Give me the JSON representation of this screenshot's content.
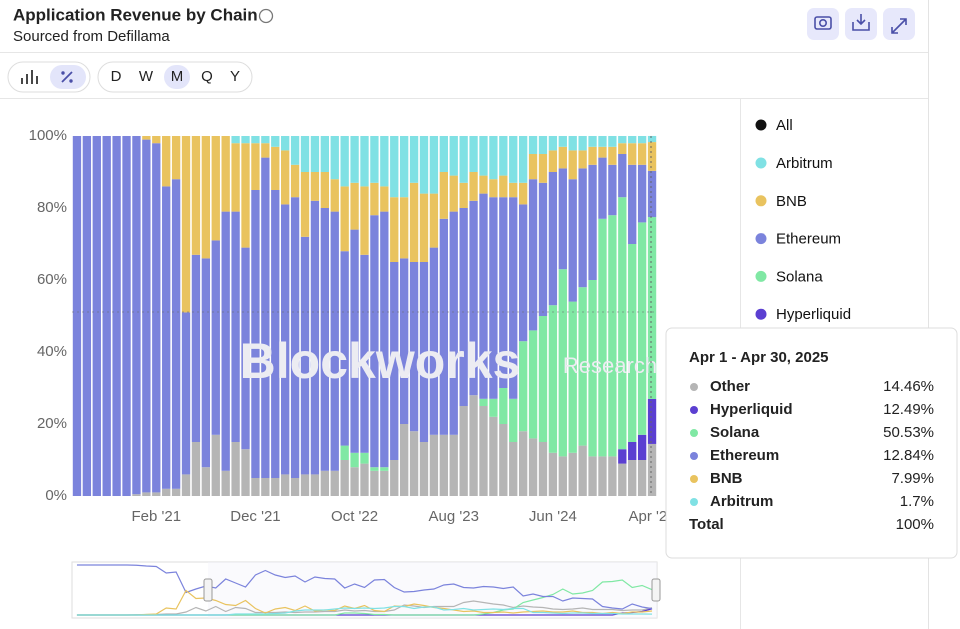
{
  "header": {
    "title": "Application Revenue by Chain",
    "subtitle": "Sourced from Defillama"
  },
  "toolbar": {
    "periods": [
      "D",
      "W",
      "M",
      "Q",
      "Y"
    ],
    "active_period": "M"
  },
  "watermark": {
    "brand": "Blockworks",
    "tag": "Research"
  },
  "legend": {
    "all": "All"
  },
  "chart_data": {
    "type": "stacked_bar",
    "categories": [
      null,
      null,
      null,
      null,
      null,
      null,
      null,
      null,
      "Feb '21",
      null,
      null,
      null,
      null,
      null,
      null,
      null,
      null,
      null,
      "Dec '21",
      null,
      null,
      null,
      null,
      null,
      null,
      null,
      null,
      null,
      "Oct '22",
      null,
      null,
      null,
      null,
      null,
      null,
      null,
      null,
      null,
      "Aug '23",
      null,
      null,
      null,
      null,
      null,
      null,
      null,
      null,
      null,
      "Jun '24",
      null,
      null,
      null,
      null,
      null,
      null,
      null,
      null,
      null,
      "Apr '25"
    ],
    "ylim": [
      0,
      100
    ],
    "yticks": [
      {
        "value": 0,
        "label": "0%"
      },
      {
        "value": 20,
        "label": "20%"
      },
      {
        "value": 40,
        "label": "40%"
      },
      {
        "value": 60,
        "label": "60%"
      },
      {
        "value": 80,
        "label": "80%"
      },
      {
        "value": 100,
        "label": "100%"
      }
    ],
    "grid": false,
    "series": [
      {
        "name": "Other",
        "color": "#b5b5b5",
        "values": [
          0,
          0,
          0,
          0,
          0,
          0,
          0.5,
          1,
          1,
          2,
          2,
          6,
          15,
          8,
          17,
          7,
          15,
          13,
          5,
          5,
          5,
          6,
          5,
          6,
          6,
          7,
          7,
          10,
          8,
          9,
          7,
          7,
          10,
          20,
          18,
          15,
          17,
          17,
          17,
          25,
          28,
          25,
          22,
          20,
          15,
          18,
          16,
          15,
          12,
          11,
          12,
          14,
          11,
          11,
          11,
          9,
          10,
          10,
          14.46
        ]
      },
      {
        "name": "Hyperliquid",
        "color": "#5b3fd1",
        "values": [
          0,
          0,
          0,
          0,
          0,
          0,
          0,
          0,
          0,
          0,
          0,
          0,
          0,
          0,
          0,
          0,
          0,
          0,
          0,
          0,
          0,
          0,
          0,
          0,
          0,
          0,
          0,
          0,
          0,
          0,
          0,
          0,
          0,
          0,
          0,
          0,
          0,
          0,
          0,
          0,
          0,
          0,
          0,
          0,
          0,
          0,
          0,
          0,
          0,
          0,
          0,
          0,
          0,
          0,
          0,
          4,
          5,
          7,
          12.49
        ]
      },
      {
        "name": "Solana",
        "color": "#80e8a4",
        "values": [
          0,
          0,
          0,
          0,
          0,
          0,
          0,
          0,
          0,
          0,
          0,
          0,
          0,
          0,
          0,
          0,
          0,
          0,
          0,
          0,
          0,
          0,
          0,
          0,
          0,
          0,
          0,
          4,
          4,
          3,
          1,
          1,
          0,
          0,
          0,
          0,
          0,
          0,
          0,
          0,
          0,
          2,
          5,
          10,
          12,
          25,
          30,
          35,
          41,
          52,
          42,
          44,
          49,
          66,
          67,
          70,
          55,
          59,
          50.53
        ]
      },
      {
        "name": "Ethereum",
        "color": "#7b83dc",
        "values": [
          100,
          100,
          100,
          100,
          100,
          100,
          99.5,
          98,
          97,
          84,
          86,
          45,
          52,
          58,
          54,
          72,
          64,
          56,
          80,
          89,
          80,
          75,
          78,
          66,
          76,
          73,
          72,
          54,
          62,
          55,
          70,
          71,
          55,
          46,
          47,
          50,
          52,
          60,
          62,
          55,
          54,
          57,
          56,
          53,
          56,
          38,
          42,
          37,
          37,
          28,
          34,
          33,
          32,
          17,
          14,
          12,
          22,
          16,
          12.84
        ]
      },
      {
        "name": "BNB",
        "color": "#e9c35f",
        "values": [
          0,
          0,
          0,
          0,
          0,
          0,
          0,
          1,
          2,
          14,
          12,
          49,
          33,
          34,
          29,
          21,
          19,
          29,
          13,
          4,
          12,
          15,
          9,
          18,
          8,
          10,
          9,
          18,
          13,
          19,
          9,
          7,
          18,
          17,
          22,
          19,
          15,
          13,
          10,
          7,
          8,
          5,
          5,
          6,
          4,
          6,
          7,
          8,
          6,
          6,
          8,
          5,
          5,
          3,
          5,
          3,
          6,
          6,
          7.99
        ]
      },
      {
        "name": "Arbitrum",
        "color": "#80e1e4",
        "values": [
          0,
          0,
          0,
          0,
          0,
          0,
          0,
          0,
          0,
          0,
          0,
          0,
          0,
          0,
          0,
          0,
          2,
          2,
          2,
          2,
          3,
          4,
          8,
          10,
          10,
          10,
          12,
          14,
          13,
          14,
          13,
          14,
          17,
          17,
          13,
          16,
          16,
          10,
          11,
          13,
          10,
          11,
          12,
          11,
          13,
          13,
          5,
          5,
          4,
          3,
          4,
          4,
          3,
          3,
          3,
          2,
          2,
          2,
          1.7
        ]
      }
    ],
    "tooltip": {
      "title": "Apr 1 - Apr 30, 2025",
      "labels": [
        "14.46%",
        "12.49%",
        "50.53%",
        "12.84%",
        "7.99%",
        "1.7%"
      ],
      "total": {
        "name": "Total",
        "value": 100,
        "label": "100%"
      }
    }
  }
}
